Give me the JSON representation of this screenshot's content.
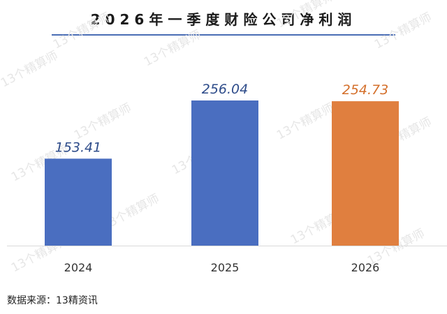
{
  "title": "2026年一季度财险公司净利润",
  "source": "数据来源：13精资讯",
  "watermark_text": "13个精算师",
  "colors": {
    "title_rule": "#4a6db5",
    "baseline": "#d9d9d9"
  },
  "chart_data": {
    "type": "bar",
    "title": "2026年一季度财险公司净利润",
    "categories": [
      "2024",
      "2025",
      "2026"
    ],
    "values": [
      153.41,
      256.04,
      254.73
    ],
    "value_labels": [
      "153.41",
      "256.04",
      "254.73"
    ],
    "bar_colors": [
      "#4a6ec0",
      "#4a6ec0",
      "#e07f3f"
    ],
    "label_colors": [
      "#2e4c8a",
      "#2e4c8a",
      "#d4702c"
    ],
    "xlabel": "",
    "ylabel": "",
    "ylim": [
      0,
      300
    ],
    "grid": false,
    "legend": "none"
  }
}
